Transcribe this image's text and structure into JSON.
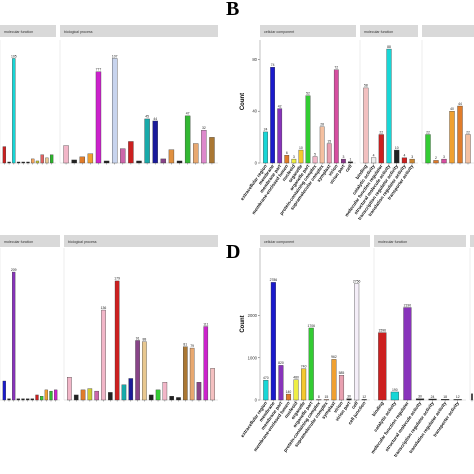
{
  "chart_data": [
    {
      "type": "bar",
      "panel_letter": "",
      "ylabel": "",
      "ylim": [
        0,
        12
      ],
      "yticks": [],
      "facets": [
        {
          "label": "molecular function",
          "bars": [
            {
              "category": "",
              "value": 1.6,
              "color": "#cc1f1f"
            },
            {
              "category": "",
              "value": 0.1,
              "color": "#222222"
            },
            {
              "category": "",
              "value": 10.2,
              "label": "105",
              "color": "#18d6d6"
            },
            {
              "category": "",
              "value": 0.1,
              "color": "#222222"
            },
            {
              "category": "",
              "value": 0.1,
              "color": "#222222"
            },
            {
              "category": "",
              "value": 0.1,
              "color": "#222222"
            },
            {
              "category": "",
              "value": 0.4,
              "color": "#f4a460"
            },
            {
              "category": "",
              "value": 0.2,
              "color": "#cccc33"
            },
            {
              "category": "",
              "value": 0.8,
              "color": "#e06060"
            },
            {
              "category": "",
              "value": 0.5,
              "color": "#e8c890"
            },
            {
              "category": "",
              "value": 0.8,
              "color": "#2bb52b"
            }
          ]
        },
        {
          "label": "biological process",
          "bars": [
            {
              "category": "",
              "value": 1.7,
              "color": "#f2b6c8"
            },
            {
              "category": "",
              "value": 0.3,
              "color": "#222222"
            },
            {
              "category": "",
              "value": 0.6,
              "color": "#e07c2a"
            },
            {
              "category": "",
              "value": 0.9,
              "color": "#f0a030"
            },
            {
              "category": "",
              "value": 8.9,
              "label": "777",
              "color": "#cc22cc"
            },
            {
              "category": "",
              "value": 0.2,
              "color": "#222222"
            },
            {
              "category": "",
              "value": 10.2,
              "label": "107",
              "color": "#c8d4ee"
            },
            {
              "category": "",
              "value": 1.4,
              "color": "#cc66aa"
            },
            {
              "category": "",
              "value": 2.1,
              "color": "#cc2020"
            },
            {
              "category": "",
              "value": 0.2,
              "color": "#222222"
            },
            {
              "category": "",
              "value": 4.3,
              "label": "45",
              "color": "#18aaaa"
            },
            {
              "category": "",
              "value": 4.1,
              "label": "44",
              "color": "#1a1a99"
            },
            {
              "category": "",
              "value": 0.4,
              "color": "#884488"
            },
            {
              "category": "",
              "value": 1.3,
              "color": "#e09040"
            },
            {
              "category": "",
              "value": 0.2,
              "color": "#222222"
            },
            {
              "category": "",
              "value": 4.6,
              "label": "47",
              "color": "#33b833"
            },
            {
              "category": "",
              "value": 1.9,
              "color": "#e8a870"
            },
            {
              "category": "",
              "value": 3.2,
              "label": "32",
              "color": "#dd88cc"
            },
            {
              "category": "",
              "value": 2.5,
              "color": "#aa7733"
            }
          ]
        }
      ]
    },
    {
      "type": "bar",
      "panel_letter": "B",
      "ylabel": "Count",
      "ylim": [
        0,
        95
      ],
      "yticks": [
        0,
        40,
        80
      ],
      "facets": [
        {
          "label": "cellular component",
          "bars": [
            {
              "category": "extracellular region",
              "value": 24,
              "label": "24",
              "color": "#18d6d6"
            },
            {
              "category": "membrane",
              "value": 74,
              "label": "74",
              "color": "#1a1acc"
            },
            {
              "category": "membrane part",
              "value": 42,
              "label": "42",
              "color": "#8833bb"
            },
            {
              "category": "membrane-enclosed lumen",
              "value": 6,
              "label": "6",
              "color": "#e07c2a"
            },
            {
              "category": "nucleoid",
              "value": 3,
              "label": "3",
              "color": "#eeee44"
            },
            {
              "category": "organelle",
              "value": 10,
              "label": "10",
              "color": "#f4c830"
            },
            {
              "category": "organelle part",
              "value": 52,
              "label": "52",
              "color": "#33cc33"
            },
            {
              "category": "protein-containing complex",
              "value": 5,
              "label": "5",
              "color": "#f2b6c8"
            },
            {
              "category": "supramolecular complex",
              "value": 28,
              "label": "28",
              "color": "#f4c0a0"
            },
            {
              "category": "symplast",
              "value": 15,
              "label": "15",
              "color": "#e8a0b0"
            },
            {
              "category": "virion",
              "value": 72,
              "label": "72",
              "color": "#d64ea0"
            },
            {
              "category": "virion part",
              "value": 3,
              "label": "3",
              "color": "#883388"
            },
            {
              "category": "cell",
              "value": 1,
              "label": "1",
              "color": "#222222"
            }
          ]
        },
        {
          "label": "molecular function",
          "bars": [
            {
              "category": "binding",
              "value": 58,
              "label": "58",
              "color": "#f2c0c0"
            },
            {
              "category": "catalytic activity",
              "value": 4,
              "label": "4",
              "color": "#eeeeee"
            },
            {
              "category": "molecular function regulator",
              "value": 22,
              "label": "22",
              "color": "#cc1f1f"
            },
            {
              "category": "structural molecule activity",
              "value": 88,
              "label": "88",
              "color": "#18d6d6"
            },
            {
              "category": "transcription regulator activity",
              "value": 10,
              "label": "10",
              "color": "#222222"
            },
            {
              "category": "translation regulator activity",
              "value": 4,
              "label": "4",
              "color": "#cc1f1f"
            },
            {
              "category": "transporter activity",
              "value": 3,
              "label": "3",
              "color": "#cc8833"
            }
          ]
        },
        {
          "label": "",
          "bars": [
            {
              "category": "",
              "value": 22,
              "label": "22",
              "color": "#33cc33"
            },
            {
              "category": "",
              "value": 2,
              "label": "2",
              "color": "#e07c2a"
            },
            {
              "category": "",
              "value": 3,
              "label": "3",
              "color": "#d64ea0"
            },
            {
              "category": "",
              "value": 40,
              "label": "40",
              "color": "#f0a030"
            },
            {
              "category": "",
              "value": 44,
              "label": "44",
              "color": "#e07c2a"
            },
            {
              "category": "",
              "value": 22,
              "label": "22",
              "color": "#f4c0a0"
            }
          ]
        }
      ]
    },
    {
      "type": "bar",
      "panel_letter": "",
      "ylabel": "",
      "ylim": [
        0,
        12
      ],
      "yticks": [],
      "facets": [
        {
          "label": "molecular function",
          "bars": [
            {
              "category": "",
              "value": 1.5,
              "color": "#1a1acc"
            },
            {
              "category": "",
              "value": 0.1,
              "color": "#222222"
            },
            {
              "category": "",
              "value": 10.1,
              "label": "209",
              "color": "#8833bb"
            },
            {
              "category": "",
              "value": 0.1,
              "color": "#222222"
            },
            {
              "category": "",
              "value": 0.1,
              "color": "#222222"
            },
            {
              "category": "",
              "value": 0.1,
              "color": "#222222"
            },
            {
              "category": "",
              "value": 0.1,
              "color": "#222222"
            },
            {
              "category": "",
              "value": 0.4,
              "color": "#cc2020"
            },
            {
              "category": "",
              "value": 0.3,
              "color": "#33cc33"
            },
            {
              "category": "",
              "value": 0.8,
              "color": "#f0a030"
            },
            {
              "category": "",
              "value": 0.7,
              "color": "#33b833"
            },
            {
              "category": "",
              "value": 0.8,
              "color": "#cc22cc"
            }
          ]
        },
        {
          "label": "biological process",
          "bars": [
            {
              "category": "",
              "value": 1.8,
              "color": "#f2b6c8"
            },
            {
              "category": "",
              "value": 0.4,
              "color": "#222222"
            },
            {
              "category": "",
              "value": 0.8,
              "color": "#e07c2a"
            },
            {
              "category": "",
              "value": 0.9,
              "color": "#cccc33"
            },
            {
              "category": "",
              "value": 0.7,
              "color": "#cc66aa"
            },
            {
              "category": "",
              "value": 7.1,
              "label": "136",
              "color": "#f2b6c8"
            },
            {
              "category": "",
              "value": 0.6,
              "color": "#222222"
            },
            {
              "category": "",
              "value": 9.4,
              "label": "179",
              "color": "#cc2020"
            },
            {
              "category": "",
              "value": 1.2,
              "color": "#18aaaa"
            },
            {
              "category": "",
              "value": 1.7,
              "color": "#1a1a99"
            },
            {
              "category": "",
              "value": 4.7,
              "label": "91",
              "color": "#884488"
            },
            {
              "category": "",
              "value": 4.6,
              "label": "88",
              "color": "#e8c890"
            },
            {
              "category": "",
              "value": 0.4,
              "color": "#222222"
            },
            {
              "category": "",
              "value": 0.8,
              "color": "#33cc33"
            },
            {
              "category": "",
              "value": 1.4,
              "color": "#f2b6c8"
            },
            {
              "category": "",
              "value": 0.3,
              "color": "#222222"
            },
            {
              "category": "",
              "value": 0.2,
              "color": "#222222"
            },
            {
              "category": "",
              "value": 4.2,
              "label": "81",
              "color": "#aa7733"
            },
            {
              "category": "",
              "value": 4.1,
              "label": "79",
              "color": "#e8a870"
            },
            {
              "category": "",
              "value": 1.4,
              "color": "#884488"
            },
            {
              "category": "",
              "value": 5.8,
              "label": "111",
              "color": "#cc22cc"
            },
            {
              "category": "",
              "value": 2.5,
              "color": "#f4c0c0"
            }
          ]
        }
      ]
    },
    {
      "type": "bar",
      "panel_letter": "D",
      "ylabel": "Count",
      "ylim": [
        0,
        3600
      ],
      "yticks": [
        0,
        1000,
        2000
      ],
      "facets": [
        {
          "label": "cellular component",
          "bars": [
            {
              "category": "extracellular region",
              "value": 470,
              "label": "470",
              "color": "#18d6d6"
            },
            {
              "category": "membrane",
              "value": 2786,
              "label": "2786",
              "color": "#1a1acc"
            },
            {
              "category": "membrane part",
              "value": 820,
              "label": "820",
              "color": "#8833bb"
            },
            {
              "category": "membrane-enclosed lumen",
              "value": 140,
              "label": "140",
              "color": "#e07c2a"
            },
            {
              "category": "nucleoid",
              "value": 480,
              "label": "480",
              "color": "#eeee44"
            },
            {
              "category": "organelle",
              "value": 740,
              "label": "740",
              "color": "#f4c830"
            },
            {
              "category": "organelle part",
              "value": 1706,
              "label": "1706",
              "color": "#33cc33"
            },
            {
              "category": "protein-containing complex",
              "value": 8,
              "label": "8",
              "color": "#f2b6c8"
            },
            {
              "category": "supramolecular complex",
              "value": 15,
              "label": "15",
              "color": "#f4c0a0"
            },
            {
              "category": "symplast",
              "value": 962,
              "label": "962",
              "color": "#f0a030"
            },
            {
              "category": "virion",
              "value": 585,
              "label": "585",
              "color": "#e8a0b0"
            },
            {
              "category": "virion part",
              "value": 30,
              "label": "30",
              "color": "#222222"
            },
            {
              "category": "cell",
              "value": 2756,
              "label": "2756",
              "color": "#f4eef8"
            },
            {
              "category": "cell junction",
              "value": 12,
              "label": "12",
              "color": "#222222"
            }
          ]
        },
        {
          "label": "molecular function",
          "bars": [
            {
              "category": "binding",
              "value": 1596,
              "label": "1596",
              "color": "#cc1f1f"
            },
            {
              "category": "catalytic activity",
              "value": 190,
              "label": "190",
              "color": "#18d6d6"
            },
            {
              "category": "molecular function regulator",
              "value": 2190,
              "label": "2190",
              "color": "#8833bb"
            },
            {
              "category": "structural molecule activity",
              "value": 30,
              "label": "30",
              "color": "#222222"
            },
            {
              "category": "transcription regulator activity",
              "value": 24,
              "label": "24",
              "color": "#222222"
            },
            {
              "category": "translation regulator activity",
              "value": 18,
              "label": "18",
              "color": "#222222"
            },
            {
              "category": "transporter activity",
              "value": 12,
              "label": "12",
              "color": "#222222"
            }
          ]
        },
        {
          "label": "",
          "bars": [
            {
              "category": "",
              "value": 150,
              "color": "#222222"
            }
          ]
        }
      ]
    }
  ]
}
